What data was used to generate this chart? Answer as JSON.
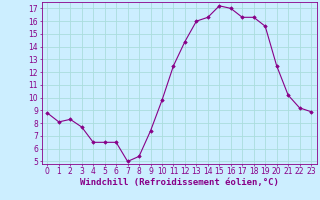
{
  "hours": [
    0,
    1,
    2,
    3,
    4,
    5,
    6,
    7,
    8,
    9,
    10,
    11,
    12,
    13,
    14,
    15,
    16,
    17,
    18,
    19,
    20,
    21,
    22,
    23
  ],
  "values": [
    8.8,
    8.1,
    8.3,
    7.7,
    6.5,
    6.5,
    6.5,
    5.0,
    5.4,
    7.4,
    9.8,
    12.5,
    14.4,
    16.0,
    16.3,
    17.2,
    17.0,
    16.3,
    16.3,
    15.6,
    12.5,
    10.2,
    9.2,
    8.9
  ],
  "line_color": "#880088",
  "marker": "D",
  "marker_size": 1.8,
  "bg_color": "#cceeff",
  "grid_color": "#aadddd",
  "xlabel": "Windchill (Refroidissement éolien,°C)",
  "xlabel_color": "#880088",
  "xlabel_fontsize": 6.5,
  "tick_color": "#880088",
  "tick_fontsize": 5.5,
  "ylim": [
    4.8,
    17.5
  ],
  "yticks": [
    5,
    6,
    7,
    8,
    9,
    10,
    11,
    12,
    13,
    14,
    15,
    16,
    17
  ],
  "xlim": [
    -0.5,
    23.5
  ],
  "xtick_labels": [
    "0",
    "1",
    "2",
    "3",
    "4",
    "5",
    "6",
    "7",
    "8",
    "9",
    "10",
    "11",
    "12",
    "13",
    "14",
    "15",
    "16",
    "17",
    "18",
    "19",
    "20",
    "21",
    "22",
    "23"
  ]
}
